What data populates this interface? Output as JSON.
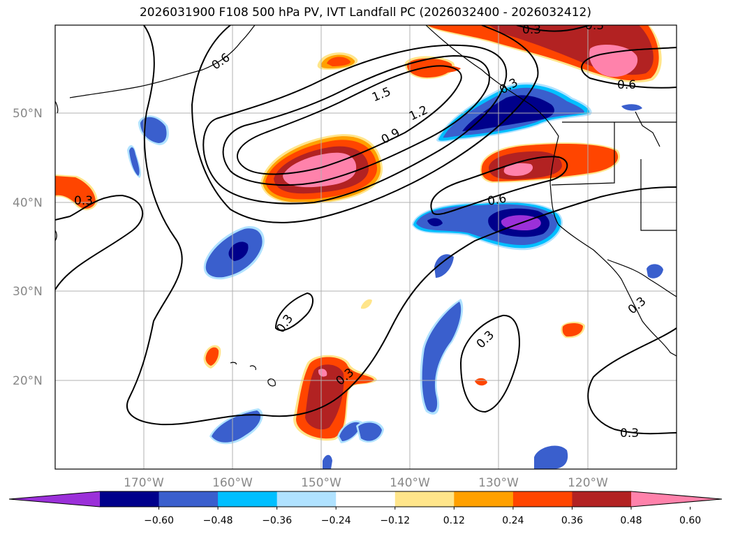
{
  "title": "2026031900 F108 500 hPa PV, IVT Landfall PC (2026032400 - 2026032412)",
  "map": {
    "lat_labels": [
      "50°N",
      "40°N",
      "30°N",
      "20°N"
    ],
    "lon_labels": [
      "170°W",
      "160°W",
      "150°W",
      "140°W",
      "130°W",
      "120°W"
    ],
    "contour_labels": [
      "0.3",
      "1.5",
      "1.2",
      "0.9",
      "0.6",
      "0.6",
      "0.3",
      "0.3",
      "0.3",
      "0.3",
      "0.3",
      "0.3",
      "0.3",
      "0.6",
      "0.3"
    ]
  },
  "colorbar": {
    "ticks": [
      "−0.60",
      "−0.48",
      "−0.36",
      "−0.24",
      "−0.12",
      "0.12",
      "0.24",
      "0.36",
      "0.48",
      "0.60"
    ],
    "colors": [
      "#9b30d9",
      "#00008b",
      "#3a5fcd",
      "#00bfff",
      "#b0e2ff",
      "#ffffff",
      "#ffe58a",
      "#ffa000",
      "#ff4500",
      "#b22222",
      "#ff82ab"
    ]
  },
  "colors": {
    "pos1": "#ffe58a",
    "pos2": "#ffa000",
    "pos3": "#ff4500",
    "pos4": "#b22222",
    "pos5": "#ff82ab",
    "neg1": "#b0e2ff",
    "neg2": "#00bfff",
    "neg3": "#3a5fcd",
    "neg4": "#00008b",
    "neg5": "#9b30d9",
    "grid": "#b0b0b0",
    "contour": "#000000"
  }
}
